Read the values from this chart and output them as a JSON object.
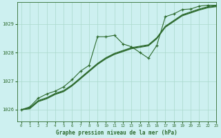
{
  "title": "Graphe pression niveau de la mer (hPa)",
  "background_color": "#cdf0f0",
  "grid_color": "#aad8cc",
  "line_color": "#2d6a2d",
  "xlim": [
    -0.5,
    23
  ],
  "ylim": [
    1025.6,
    1029.75
  ],
  "yticks": [
    1026,
    1027,
    1028,
    1029
  ],
  "xticks": [
    0,
    1,
    2,
    3,
    4,
    5,
    6,
    7,
    8,
    9,
    10,
    11,
    12,
    13,
    14,
    15,
    16,
    17,
    18,
    19,
    20,
    21,
    22,
    23
  ],
  "smooth_x": [
    0,
    1,
    2,
    3,
    4,
    5,
    6,
    7,
    8,
    9,
    10,
    11,
    12,
    13,
    14,
    15,
    16,
    17,
    18,
    19,
    20,
    21,
    22,
    23
  ],
  "smooth_y": [
    1026.0,
    1026.05,
    1026.3,
    1026.4,
    1026.55,
    1026.65,
    1026.85,
    1027.1,
    1027.35,
    1027.6,
    1027.8,
    1027.95,
    1028.05,
    1028.15,
    1028.2,
    1028.25,
    1028.5,
    1028.9,
    1029.1,
    1029.3,
    1029.4,
    1029.5,
    1029.58,
    1029.62
  ],
  "smooth2_y": [
    1026.0,
    1026.07,
    1026.32,
    1026.42,
    1026.57,
    1026.67,
    1026.87,
    1027.12,
    1027.37,
    1027.62,
    1027.82,
    1027.97,
    1028.07,
    1028.17,
    1028.22,
    1028.27,
    1028.52,
    1028.92,
    1029.12,
    1029.32,
    1029.42,
    1029.52,
    1029.6,
    1029.64
  ],
  "smooth3_y": [
    1026.0,
    1026.03,
    1026.28,
    1026.38,
    1026.53,
    1026.63,
    1026.83,
    1027.08,
    1027.33,
    1027.58,
    1027.78,
    1027.93,
    1028.03,
    1028.13,
    1028.18,
    1028.23,
    1028.48,
    1028.88,
    1029.08,
    1029.28,
    1029.38,
    1029.48,
    1029.56,
    1029.6
  ],
  "marker_x": [
    0,
    1,
    2,
    3,
    4,
    5,
    6,
    7,
    8,
    9,
    10,
    11,
    12,
    13,
    14,
    15,
    16,
    17,
    18,
    19,
    20,
    21,
    22,
    23
  ],
  "marker_y": [
    1026.0,
    1026.1,
    1026.4,
    1026.55,
    1026.65,
    1026.8,
    1027.05,
    1027.35,
    1027.55,
    1028.55,
    1028.55,
    1028.6,
    1028.3,
    1028.2,
    1028.0,
    1027.8,
    1028.25,
    1029.25,
    1029.35,
    1029.5,
    1029.52,
    1029.62,
    1029.65,
    1029.65
  ]
}
